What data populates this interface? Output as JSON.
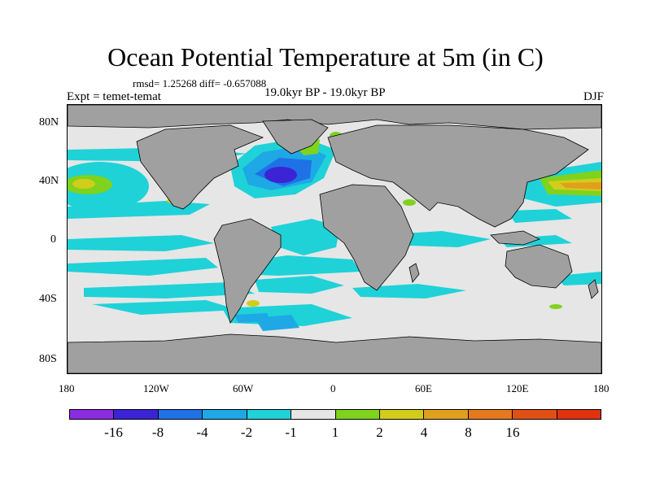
{
  "title": "Ocean Potential Temperature at 5m (in C)",
  "stats_line": "rmsd= 1.25268 diff= -0.657088",
  "experiment": "Expt = temet-temat",
  "period": "19.0kyr BP - 19.0kyr BP",
  "season": "DJF",
  "map": {
    "lat_labels": [
      "80N",
      "40N",
      "0",
      "40S",
      "80S"
    ],
    "lon_labels": [
      "180",
      "120W",
      "60W",
      "0",
      "60E",
      "120E",
      "180"
    ],
    "land_color": "#a0a0a0",
    "ocean_neutral_color": "#e6e6e6"
  },
  "colorbar": {
    "colors": [
      "#8b2be2",
      "#3c23d6",
      "#1e72e6",
      "#1ea8e6",
      "#1ed2d8",
      "#e6e6e6",
      "#7fd21e",
      "#d2cd1a",
      "#e0a01e",
      "#e6781e",
      "#e05014",
      "#e0320f"
    ],
    "labels": [
      "-16",
      "-8",
      "-4",
      "-2",
      "-1",
      "1",
      "2",
      "4",
      "8",
      "16"
    ]
  }
}
